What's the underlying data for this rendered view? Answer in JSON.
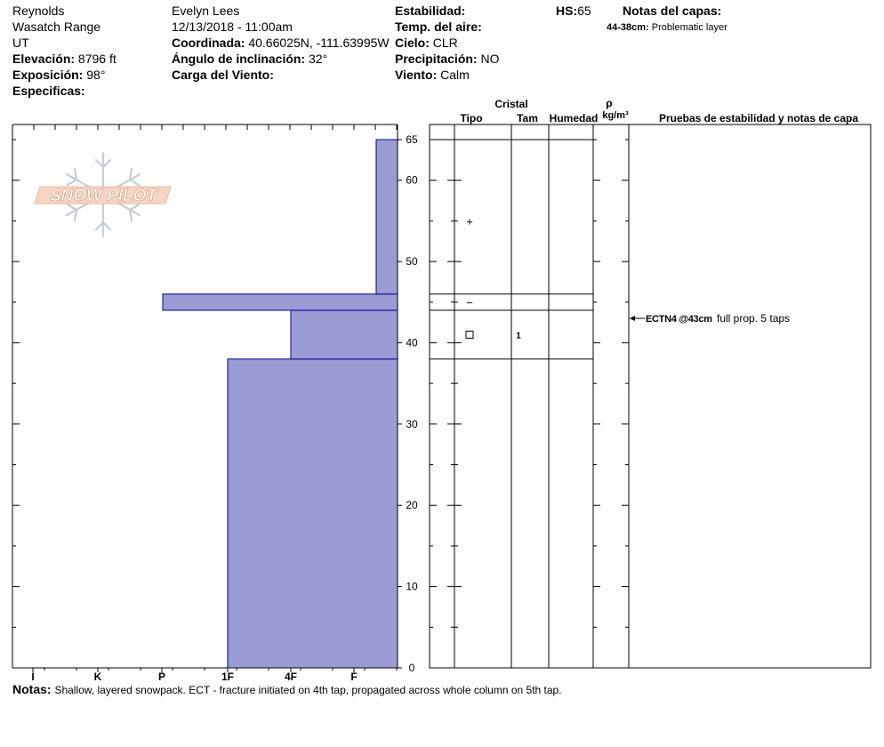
{
  "header": {
    "col1": {
      "observer": "Reynolds",
      "range": "Wasatch Range",
      "state": "UT",
      "elevation_label": "Elevación:",
      "elevation_value": "8796 ft",
      "aspect_label": "Exposición:",
      "aspect_value": "98°",
      "specifics_label": "Especificas:"
    },
    "col2": {
      "name": "Evelyn Lees",
      "datetime": "12/13/2018 - 11:00am",
      "coord_label": "Coordinada:",
      "coord_value": "40.66025N, -111.63995W",
      "slope_label": "Ángulo de inclinación:",
      "slope_value": "32°",
      "windload_label": "Carga del Viento:"
    },
    "col3": {
      "stability_label": "Estabilidad:",
      "airtemp_label": "Temp. del aire:",
      "sky_label": "Cielo:",
      "sky_value": "CLR",
      "precip_label": "Precipitación:",
      "precip_value": "NO",
      "wind_label": "Viento:",
      "wind_value": "Calm"
    },
    "hs_label": "HS:",
    "hs_value": "65",
    "layer_notes_title": "Notas del capas:",
    "layer_note_range": "44-38cm:",
    "layer_note_text": "Problematic layer"
  },
  "table_headers": {
    "crystal": "Cristal",
    "type": "Tipo",
    "size": "Tam",
    "moisture": "Humedad",
    "rho": "ρ",
    "density_unit": "kg/m³",
    "tests": "Pruebas de estabilidad y notas de capa"
  },
  "stability_test": {
    "depth_cm": 43,
    "label": "ECTN4 @43cm",
    "note": "full prop. 5 taps"
  },
  "crystal_rows": [
    {
      "depth_cm": 55,
      "type_symbol": "+",
      "size": ""
    },
    {
      "depth_cm": 45,
      "type_symbol": "−",
      "size": ""
    },
    {
      "depth_cm": 41,
      "type_symbol": "□",
      "size": "1"
    }
  ],
  "notes": {
    "label": "Notas:",
    "text": "Shallow, layered snowpack.  ECT - fracture initiated on 4th tap, propagated across whole column on 5th tap."
  },
  "logo_text": "SNOW PILOT",
  "chart_data": {
    "type": "bar",
    "orientation": "horizontal",
    "xlabel": "",
    "ylabel": "",
    "x_categories": [
      "I",
      "K",
      "P",
      "1F",
      "4F",
      "F"
    ],
    "y_ticks": [
      0,
      10,
      20,
      30,
      40,
      50,
      60,
      65
    ],
    "ylim": [
      0,
      65
    ],
    "hardness_layers": [
      {
        "bottom_cm": 0,
        "top_cm": 38,
        "hardness": "1F"
      },
      {
        "bottom_cm": 38,
        "top_cm": 44,
        "hardness": "4F-"
      },
      {
        "bottom_cm": 44,
        "top_cm": 46,
        "hardness": "P+"
      },
      {
        "bottom_cm": 46,
        "top_cm": 65,
        "hardness": "F"
      }
    ],
    "layer_boundaries_cm": [
      65,
      46,
      44,
      38
    ],
    "fill_color": "#9b9bd6",
    "stroke_color": "#00008b"
  }
}
